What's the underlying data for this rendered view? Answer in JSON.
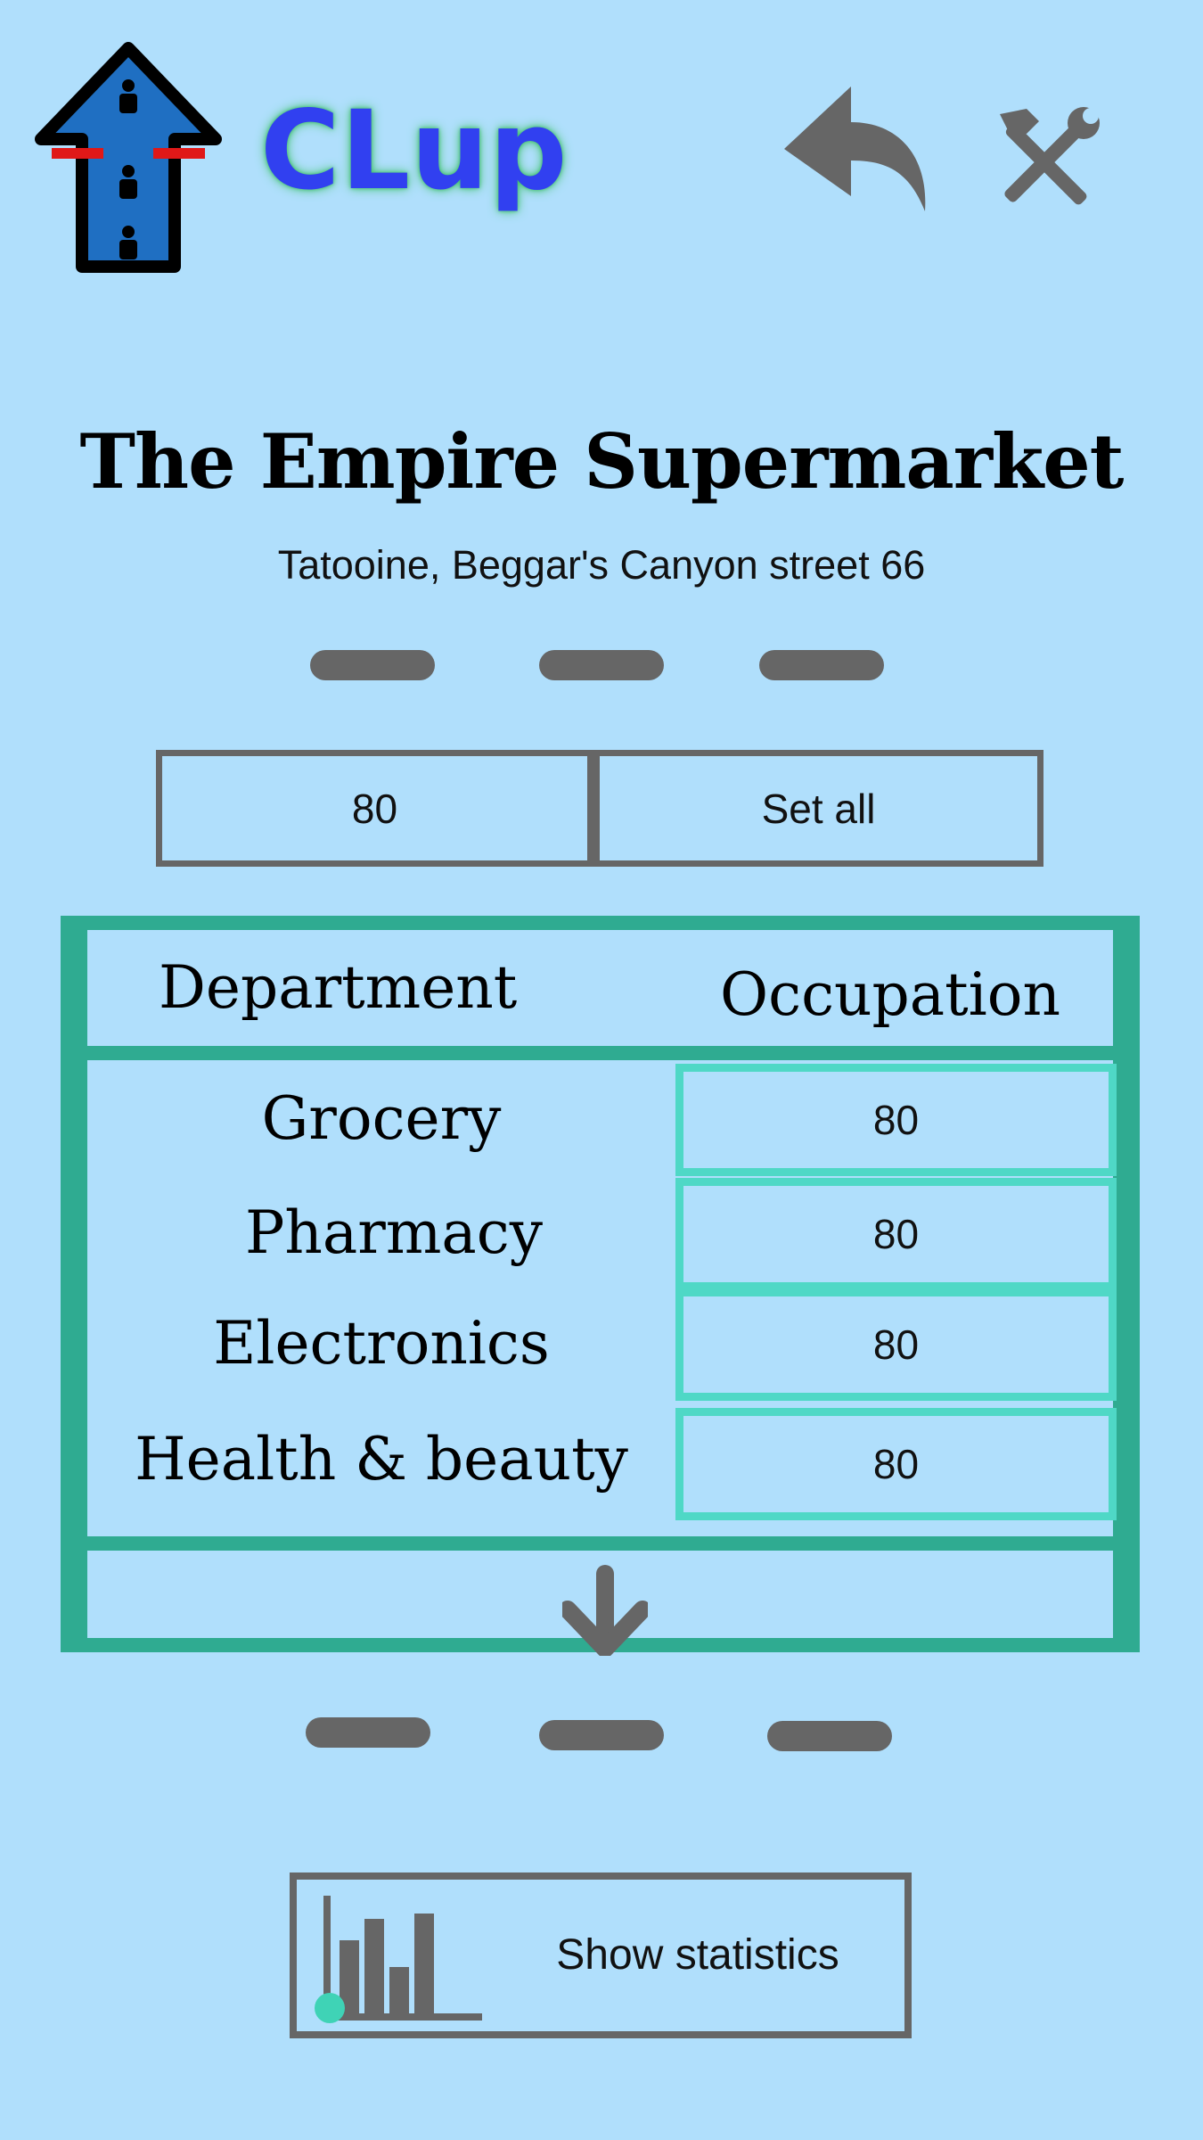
{
  "header": {
    "app_name": "CLup",
    "logo_icon": "clup-queue-arrow-logo-icon",
    "back_icon": "back-arrow-icon",
    "settings_icon": "hammer-wrench-icon"
  },
  "store": {
    "name": "The Empire Supermarket",
    "address": "Tatooine, Beggar's Canyon street 66"
  },
  "set_all": {
    "value": "80",
    "button_label": "Set all"
  },
  "table": {
    "headers": [
      "Department",
      "Occupation"
    ],
    "rows": [
      {
        "department": "Grocery",
        "occupation": "80"
      },
      {
        "department": "Pharmacy",
        "occupation": "80"
      },
      {
        "department": "Electronics",
        "occupation": "80"
      },
      {
        "department": "Health & beauty",
        "occupation": "80"
      }
    ],
    "expand_icon": "arrow-down-icon"
  },
  "stats": {
    "button_label": "Show statistics",
    "icon": "bar-chart-icon"
  },
  "colors": {
    "background": "#b0dffc",
    "brand_blue": "#3140f0",
    "table_border": "#2fab91",
    "input_border": "#4fd8c6",
    "icon_gray": "#666666"
  }
}
